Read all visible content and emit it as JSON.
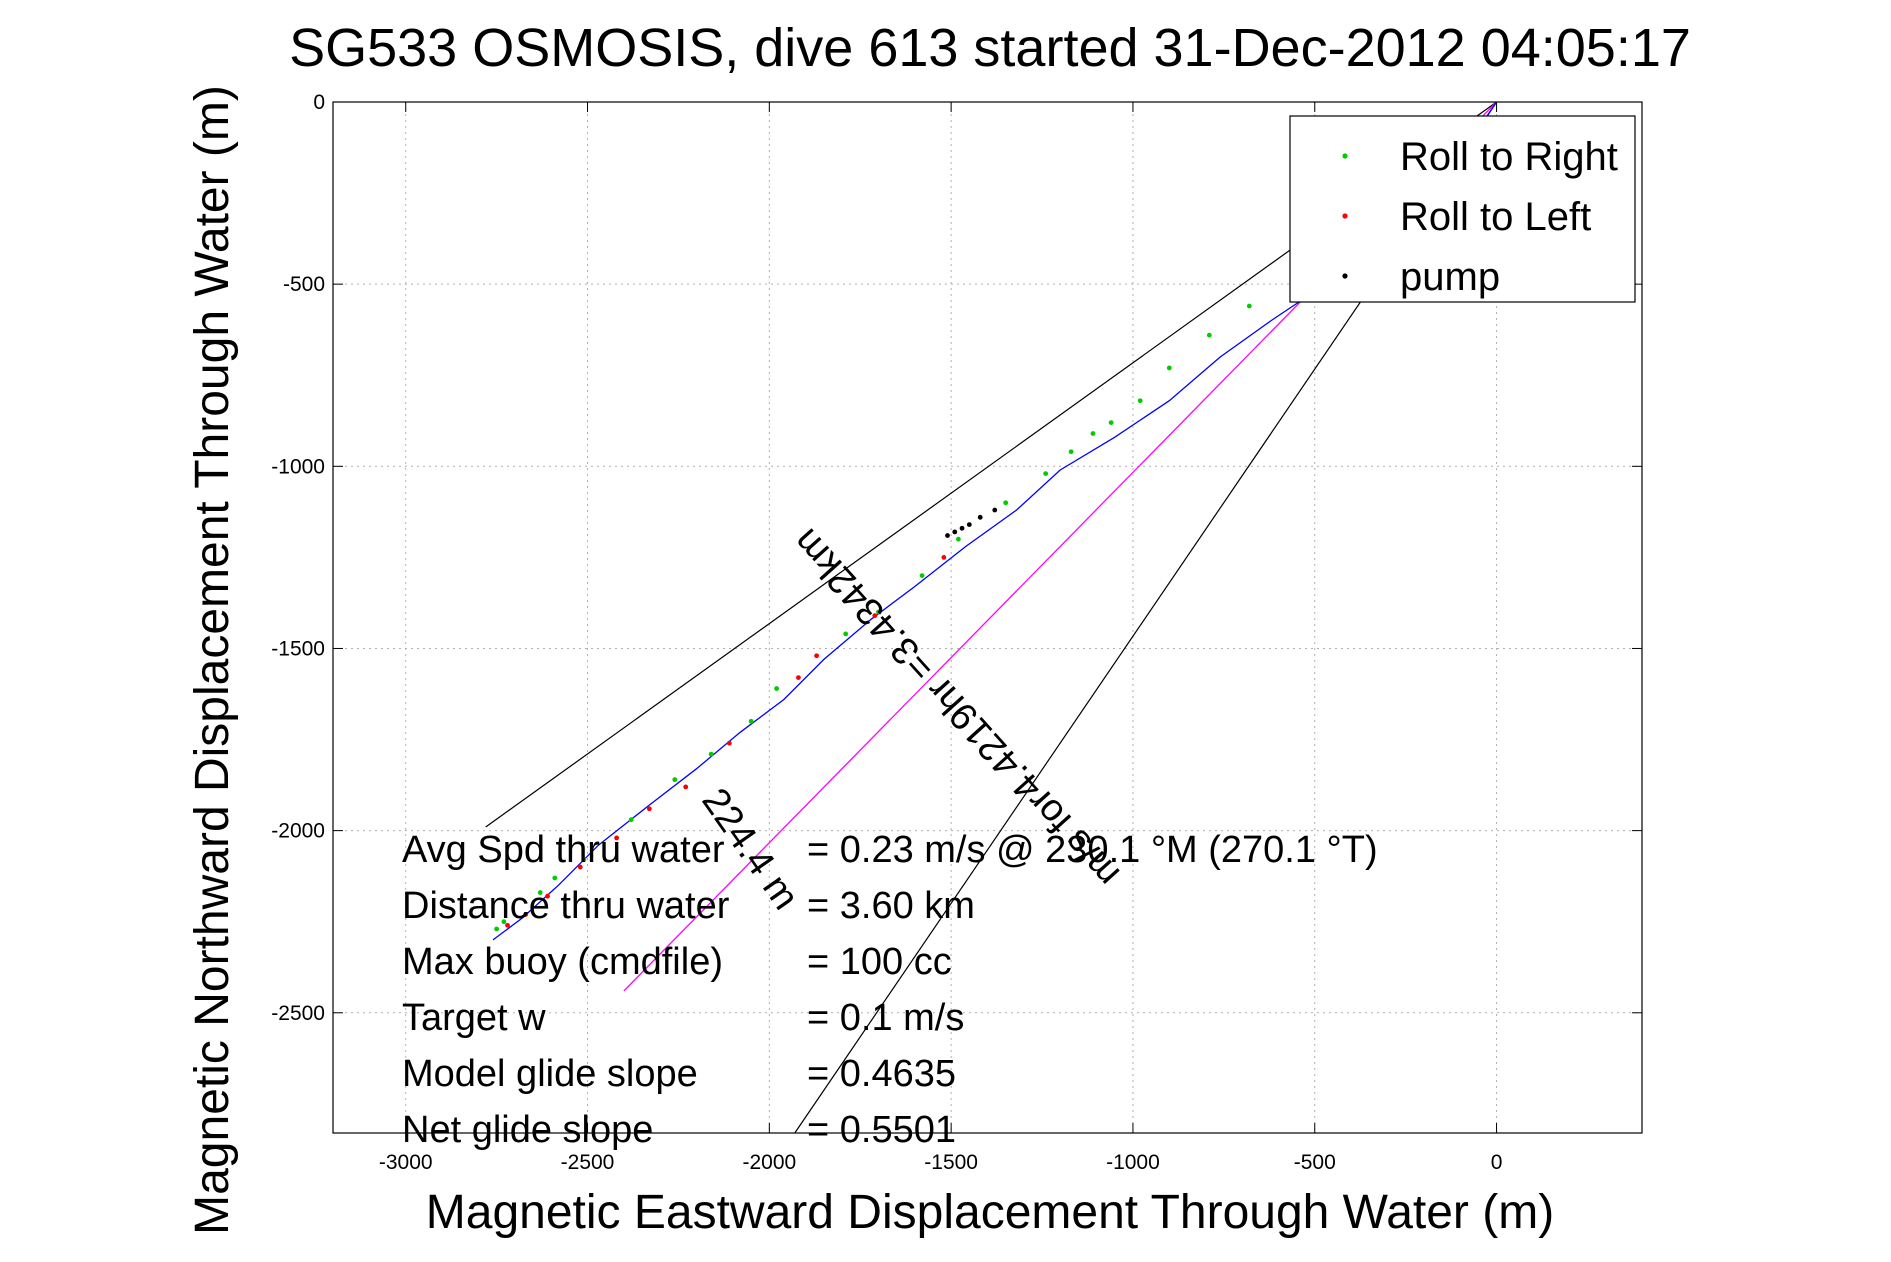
{
  "chart_data": {
    "type": "line",
    "title": "SG533 OSMOSIS, dive 613 started 31-Dec-2012 04:05:17",
    "xlabel": "Magnetic Eastward Displacement Through Water (m)",
    "ylabel": "Magnetic Northward Displacement Through Water (m)",
    "xlim": [
      -3200,
      400
    ],
    "ylim": [
      -2830,
      0
    ],
    "xticks": [
      -3000,
      -2500,
      -2000,
      -1500,
      -1000,
      -500,
      0
    ],
    "yticks": [
      0,
      -500,
      -1000,
      -1500,
      -2000,
      -2500
    ],
    "grid": true,
    "legend_position": "top-right",
    "legend": [
      {
        "label": "Roll to Right",
        "color": "#00cc00"
      },
      {
        "label": "Roll to Left",
        "color": "#ff0000"
      },
      {
        "label": "pump",
        "color": "#000000"
      }
    ],
    "track": {
      "color": "#0000ff",
      "x": [
        0,
        -100,
        -220,
        -360,
        -500,
        -620,
        -760,
        -900,
        -1050,
        -1200,
        -1320,
        -1460,
        -1600,
        -1720,
        -1850,
        -1960,
        -2080,
        -2200,
        -2330,
        -2470,
        -2580,
        -2680,
        -2760
      ],
      "y": [
        0,
        -150,
        -290,
        -420,
        -520,
        -600,
        -700,
        -820,
        -920,
        -1010,
        -1120,
        -1220,
        -1330,
        -1420,
        -1530,
        -1640,
        -1730,
        -1830,
        -1930,
        -2040,
        -2150,
        -2240,
        -2300
      ]
    },
    "roll_right_points": {
      "x": [
        -40,
        -450,
        -560,
        -680,
        -790,
        -900,
        -980,
        -1060,
        -1110,
        -1170,
        -1240,
        -1350,
        -1480,
        -1580,
        -1700,
        -1790,
        -1980,
        -2050,
        -2160,
        -2260,
        -2380,
        -2510,
        -2590,
        -2630,
        -2730,
        -2750
      ],
      "y": [
        -60,
        -470,
        -510,
        -560,
        -640,
        -730,
        -820,
        -880,
        -910,
        -960,
        -1020,
        -1100,
        -1200,
        -1300,
        -1400,
        -1460,
        -1610,
        -1700,
        -1790,
        -1860,
        -1970,
        -2080,
        -2130,
        -2170,
        -2250,
        -2270
      ]
    },
    "roll_left_points": {
      "x": [
        -1520,
        -1710,
        -1870,
        -1920,
        -2110,
        -2230,
        -2330,
        -2420,
        -2520,
        -2610,
        -2670,
        -2720
      ],
      "y": [
        -1250,
        -1410,
        -1520,
        -1580,
        -1760,
        -1880,
        -1940,
        -2020,
        -2100,
        -2180,
        -2230,
        -2260
      ]
    },
    "pump_points": {
      "x": [
        -1380,
        -1420,
        -1450,
        -1470,
        -1490,
        -1510
      ],
      "y": [
        -1120,
        -1140,
        -1160,
        -1170,
        -1180,
        -1190
      ]
    },
    "heading_line": {
      "color": "#ff00ff",
      "x": [
        0,
        -2400
      ],
      "y": [
        0,
        -2440
      ]
    },
    "cone_lines": {
      "color": "#000000",
      "lines": [
        {
          "x": [
            0,
            -2780
          ],
          "y": [
            0,
            -1990
          ]
        },
        {
          "x": [
            0,
            -1930
          ],
          "y": [
            0,
            -2830
          ]
        }
      ]
    },
    "annotations": [
      {
        "text": "224.4 m",
        "x": -2080,
        "y": -2070,
        "rotation_deg": 55
      },
      {
        "text": "m/s for4.4219hr =3.4342km",
        "x": -1460,
        "y": -1640,
        "rotation_deg": 228
      }
    ],
    "stats": [
      {
        "label": "Avg Spd thru water",
        "value": "=  0.23 m/s @ 230.1 °M (270.1 °T)"
      },
      {
        "label": "Distance thru water",
        "value": "=  3.60 km"
      },
      {
        "label": "Max buoy (cmdfile)",
        "value": "= 100 cc"
      },
      {
        "label": "Target w",
        "value": "= 0.1 m/s"
      },
      {
        "label": "Model glide slope",
        "value": "= 0.4635"
      },
      {
        "label": "Net glide slope",
        "value": "= 0.5501"
      }
    ]
  }
}
